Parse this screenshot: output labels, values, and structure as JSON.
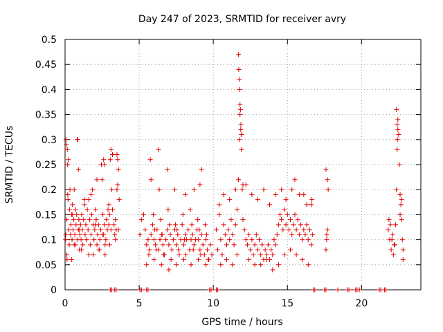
{
  "chart_data": {
    "type": "scatter",
    "title": "Day 247 of 2023, SRMTID for receiver avry",
    "xlabel": "GPS time / hours",
    "ylabel": "SRMTID / TECUs",
    "xlim": [
      0,
      24
    ],
    "ylim": [
      0,
      0.5
    ],
    "x_ticks": [
      0,
      5,
      10,
      15,
      20
    ],
    "x_tick_labels": [
      "0",
      "5",
      "10",
      "15",
      "20"
    ],
    "y_ticks": [
      0,
      0.05,
      0.1,
      0.15,
      0.2,
      0.25,
      0.3,
      0.35,
      0.4,
      0.45,
      0.5
    ],
    "y_tick_labels": [
      "0",
      "0.05",
      "0.1",
      "0.15",
      "0.2",
      "0.25",
      "0.3",
      "0.35",
      "0.4",
      "0.45",
      "0.5"
    ],
    "grid": true,
    "marker": "+",
    "color": "#e00000",
    "series": [
      {
        "x": [
          0.03,
          0.06,
          0.1,
          0.13,
          0.17,
          0.2,
          0.24,
          0.28,
          0.3,
          0.33,
          0.37,
          0.4,
          0.44,
          0.47,
          0.5,
          0.54,
          0.58,
          0.62,
          0.66,
          0.7,
          0.74,
          0.78,
          0.82,
          0.86,
          0.9,
          0.93,
          0.96,
          1.0,
          1.04,
          1.08,
          1.12,
          1.16,
          1.2,
          1.25,
          1.3,
          1.35,
          1.4,
          1.45,
          1.5,
          1.55,
          1.6,
          1.65,
          1.7,
          1.75,
          1.8,
          1.85,
          1.9,
          1.95,
          2.0,
          2.05,
          2.1,
          2.15,
          2.2,
          2.25,
          2.3,
          2.35,
          2.4,
          2.45,
          2.5,
          2.55,
          2.6,
          2.65,
          2.7,
          2.75,
          2.8,
          2.85,
          2.9,
          2.95,
          3.0,
          3.05,
          3.1,
          3.15,
          3.2,
          3.3,
          3.35,
          3.4,
          3.45,
          3.5,
          3.55,
          3.6,
          3.65,
          0.08,
          0.15,
          0.22,
          0.85,
          0.9,
          2.6,
          2.65,
          3.2,
          3.5,
          0.12,
          0.45,
          0.7,
          1.1,
          1.6,
          1.9,
          2.3,
          2.7,
          3.0,
          3.4,
          0.18,
          0.62,
          1.3,
          1.75,
          2.15,
          2.95,
          3.55,
          0.05,
          0.5,
          0.95,
          1.45,
          2.05,
          2.55,
          3.1,
          3.6,
          5.05,
          5.15,
          5.3,
          5.4,
          5.5,
          5.6,
          5.7,
          5.8,
          5.9,
          6.0,
          6.1,
          6.2,
          6.3,
          6.4,
          6.5,
          6.6,
          6.7,
          6.8,
          6.9,
          7.0,
          7.1,
          7.2,
          7.3,
          7.4,
          7.5,
          7.6,
          7.7,
          7.8,
          7.9,
          8.0,
          8.1,
          8.2,
          8.3,
          8.4,
          8.5,
          8.6,
          8.7,
          8.8,
          8.9,
          9.0,
          9.1,
          9.2,
          9.3,
          9.4,
          9.5,
          9.6,
          9.7,
          9.8,
          9.9,
          5.75,
          5.8,
          6.3,
          6.35,
          6.9,
          7.4,
          8.1,
          8.7,
          9.1,
          9.2,
          5.5,
          6.0,
          6.5,
          7.0,
          7.5,
          8.0,
          8.5,
          9.0,
          9.5,
          5.95,
          6.45,
          6.95,
          7.45,
          7.95,
          8.45,
          8.95,
          9.45,
          5.65,
          6.15,
          6.65,
          7.15,
          7.65,
          8.15,
          8.65,
          9.15,
          9.65,
          6.05,
          6.55,
          7.05,
          7.55,
          8.05,
          8.55,
          9.05,
          9.55,
          10.2,
          10.3,
          10.4,
          10.5,
          10.6,
          10.7,
          10.8,
          10.9,
          11.0,
          11.1,
          11.2,
          11.3,
          11.4,
          11.5,
          11.6,
          11.7,
          11.75,
          11.8,
          11.85,
          11.9,
          11.95,
          12.0,
          12.1,
          12.2,
          12.3,
          12.4,
          12.5,
          12.6,
          12.7,
          12.8,
          12.9,
          13.0,
          13.1,
          13.2,
          13.3,
          13.4,
          13.5,
          13.6,
          13.7,
          13.8,
          13.9,
          14.0,
          14.1,
          14.2,
          14.3,
          14.4,
          14.5,
          14.6,
          14.7,
          14.8,
          14.9,
          15.0,
          15.1,
          15.2,
          15.3,
          15.4,
          15.5,
          15.6,
          15.7,
          15.8,
          15.9,
          16.0,
          16.1,
          16.2,
          16.3,
          16.4,
          16.5,
          16.6,
          16.7,
          11.7,
          11.72,
          11.75,
          11.78,
          11.8,
          11.83,
          11.86,
          11.9,
          10.4,
          12.2,
          14.6,
          15.5,
          16.1,
          16.6,
          10.5,
          10.9,
          11.3,
          11.6,
          12.4,
          12.8,
          13.2,
          13.6,
          14.0,
          14.4,
          14.8,
          15.2,
          15.6,
          16.0,
          16.4,
          10.7,
          11.1,
          11.5,
          12.0,
          12.6,
          13.0,
          13.4,
          13.8,
          14.2,
          14.9,
          15.3,
          15.8,
          16.3,
          16.65,
          17.6,
          17.65,
          17.7,
          17.75,
          17.6,
          17.7,
          17.65,
          21.8,
          21.9,
          22.0,
          22.1,
          22.2,
          22.3,
          22.35,
          22.4,
          22.45,
          22.5,
          22.55,
          22.6,
          22.65,
          22.7,
          22.75,
          22.8,
          22.35,
          22.4,
          22.42,
          22.45,
          21.85,
          21.95,
          22.05,
          22.15,
          22.25,
          22.6,
          22.7,
          22.8
        ],
        "y": [
          0.1,
          0.3,
          0.14,
          0.06,
          0.25,
          0.18,
          0.12,
          0.09,
          0.16,
          0.2,
          0.11,
          0.13,
          0.15,
          0.1,
          0.17,
          0.12,
          0.14,
          0.09,
          0.11,
          0.16,
          0.13,
          0.15,
          0.3,
          0.1,
          0.12,
          0.14,
          0.08,
          0.11,
          0.13,
          0.1,
          0.15,
          0.12,
          0.09,
          0.14,
          0.17,
          0.11,
          0.13,
          0.1,
          0.16,
          0.12,
          0.18,
          0.14,
          0.09,
          0.11,
          0.15,
          0.2,
          0.13,
          0.1,
          0.12,
          0.16,
          0.14,
          0.09,
          0.11,
          0.13,
          0.08,
          0.1,
          0.12,
          0.25,
          0.22,
          0.15,
          0.11,
          0.13,
          0.09,
          0.1,
          0.14,
          0.12,
          0.16,
          0.13,
          0.15,
          0.26,
          0.28,
          0.2,
          0.16,
          0.13,
          0.11,
          0.14,
          0.12,
          0.2,
          0.26,
          0.24,
          0.18,
          0.29,
          0.28,
          0.26,
          0.3,
          0.24,
          0.26,
          0.25,
          0.27,
          0.27,
          0.07,
          0.06,
          0.09,
          0.08,
          0.07,
          0.07,
          0.08,
          0.07,
          0.09,
          0.1,
          0.19,
          0.2,
          0.18,
          0.19,
          0.22,
          0.17,
          0.21,
          0.11,
          0.15,
          0.12,
          0.1,
          0.13,
          0.11,
          0.12,
          0.12,
          0.11,
          0.14,
          0.15,
          0.12,
          0.09,
          0.1,
          0.08,
          0.11,
          0.13,
          0.1,
          0.09,
          0.12,
          0.08,
          0.1,
          0.11,
          0.09,
          0.07,
          0.1,
          0.12,
          0.09,
          0.11,
          0.08,
          0.1,
          0.12,
          0.09,
          0.11,
          0.07,
          0.1,
          0.13,
          0.09,
          0.11,
          0.1,
          0.12,
          0.08,
          0.1,
          0.11,
          0.09,
          0.1,
          0.12,
          0.1,
          0.08,
          0.11,
          0.09,
          0.07,
          0.1,
          0.08,
          0.06,
          0.09,
          0.07,
          0.26,
          0.22,
          0.28,
          0.2,
          0.24,
          0.2,
          0.19,
          0.2,
          0.21,
          0.24,
          0.05,
          0.06,
          0.05,
          0.04,
          0.05,
          0.06,
          0.05,
          0.06,
          0.05,
          0.15,
          0.14,
          0.16,
          0.13,
          0.15,
          0.16,
          0.14,
          0.13,
          0.07,
          0.08,
          0.07,
          0.06,
          0.08,
          0.07,
          0.08,
          0.07,
          0.06,
          0.12,
          0.11,
          0.13,
          0.12,
          0.1,
          0.13,
          0.12,
          0.11,
          0.12,
          0.08,
          0.15,
          0.1,
          0.07,
          0.13,
          0.11,
          0.09,
          0.12,
          0.1,
          0.14,
          0.11,
          0.09,
          0.13,
          0.16,
          0.22,
          0.3,
          0.35,
          0.32,
          0.28,
          0.2,
          0.14,
          0.12,
          0.1,
          0.09,
          0.11,
          0.08,
          0.1,
          0.07,
          0.09,
          0.11,
          0.08,
          0.1,
          0.07,
          0.09,
          0.06,
          0.08,
          0.07,
          0.09,
          0.06,
          0.08,
          0.07,
          0.1,
          0.09,
          0.11,
          0.13,
          0.15,
          0.14,
          0.12,
          0.16,
          0.13,
          0.15,
          0.12,
          0.14,
          0.11,
          0.13,
          0.15,
          0.12,
          0.14,
          0.11,
          0.13,
          0.1,
          0.12,
          0.11,
          0.13,
          0.1,
          0.12,
          0.09,
          0.11,
          0.47,
          0.44,
          0.42,
          0.4,
          0.37,
          0.36,
          0.33,
          0.31,
          0.17,
          0.21,
          0.2,
          0.22,
          0.19,
          0.17,
          0.05,
          0.06,
          0.05,
          0.07,
          0.06,
          0.05,
          0.05,
          0.06,
          0.04,
          0.05,
          0.07,
          0.08,
          0.07,
          0.06,
          0.05,
          0.19,
          0.18,
          0.2,
          0.21,
          0.19,
          0.18,
          0.2,
          0.17,
          0.19,
          0.18,
          0.2,
          0.19,
          0.17,
          0.18,
          0.08,
          0.11,
          0.12,
          0.2,
          0.24,
          0.22,
          0.1,
          0.12,
          0.1,
          0.08,
          0.11,
          0.09,
          0.13,
          0.2,
          0.28,
          0.34,
          0.31,
          0.25,
          0.19,
          0.17,
          0.14,
          0.1,
          0.08,
          0.36,
          0.33,
          0.3,
          0.32,
          0.14,
          0.13,
          0.1,
          0.07,
          0.09,
          0.15,
          0.18,
          0.06
        ]
      },
      {
        "x": [
          3.05,
          3.15,
          3.35,
          3.45,
          5.05,
          5.15,
          5.5,
          5.6,
          9.75,
          9.85,
          10.2,
          10.3,
          16.75,
          16.85,
          17.5,
          17.6,
          18.4,
          19.05,
          19.15,
          19.6,
          19.7,
          19.85,
          21.2,
          21.3,
          21.55,
          21.65
        ],
        "y": [
          0,
          0,
          0,
          0,
          0,
          0,
          0,
          0,
          0,
          0,
          0,
          0,
          0,
          0,
          0,
          0,
          0,
          0,
          0,
          0,
          0,
          0,
          0,
          0,
          0,
          0
        ]
      }
    ]
  }
}
